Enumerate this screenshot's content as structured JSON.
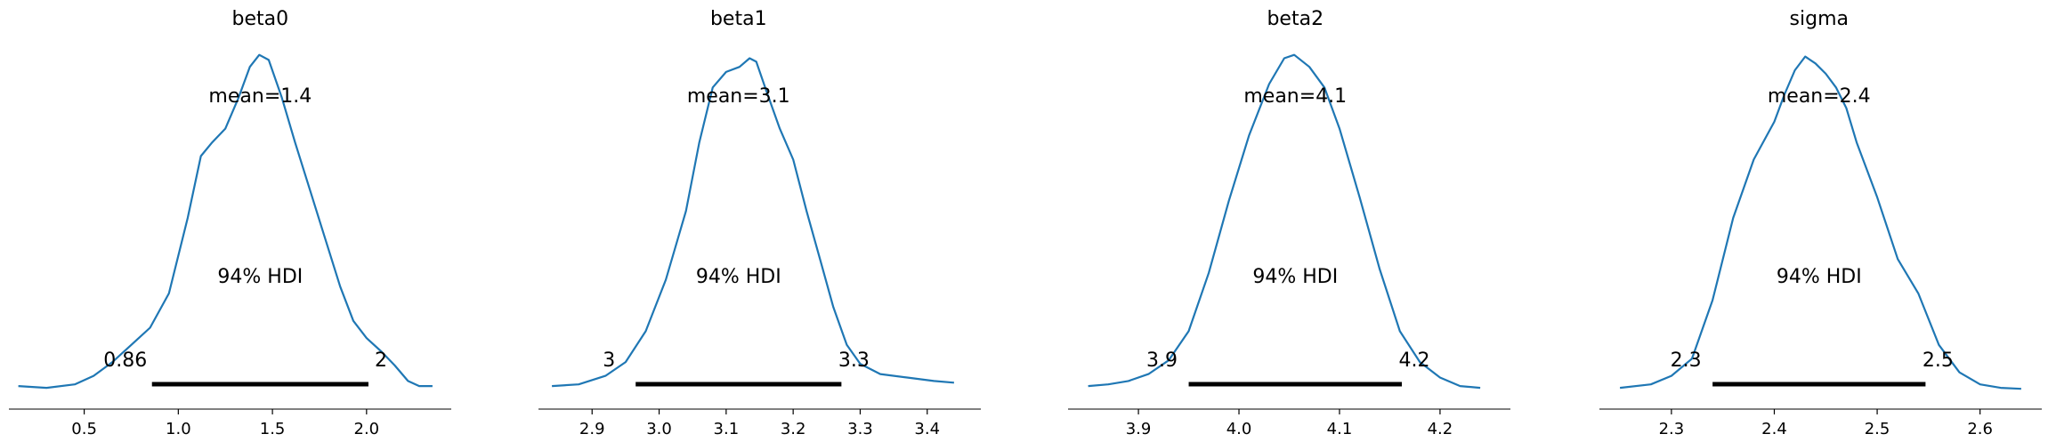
{
  "chart_data": [
    {
      "type": "line",
      "title": "beta0",
      "xlim": [
        0.1,
        2.45
      ],
      "xticks": [
        0.5,
        1.0,
        1.5,
        2.0
      ],
      "xtick_labels": [
        "0.5",
        "1.0",
        "1.5",
        "2.0"
      ],
      "mean_label": "mean=1.4",
      "hdi_label": "94% HDI",
      "hdi": [
        0.86,
        2.01
      ],
      "hdi_labels": [
        "0.86",
        "2"
      ],
      "density_points": [
        [
          0.15,
          0.01
        ],
        [
          0.3,
          0.005
        ],
        [
          0.45,
          0.015
        ],
        [
          0.55,
          0.04
        ],
        [
          0.65,
          0.08
        ],
        [
          0.75,
          0.13
        ],
        [
          0.85,
          0.18
        ],
        [
          0.95,
          0.28
        ],
        [
          1.05,
          0.5
        ],
        [
          1.12,
          0.68
        ],
        [
          1.18,
          0.72
        ],
        [
          1.25,
          0.76
        ],
        [
          1.32,
          0.85
        ],
        [
          1.38,
          0.94
        ],
        [
          1.43,
          0.975
        ],
        [
          1.48,
          0.96
        ],
        [
          1.55,
          0.85
        ],
        [
          1.62,
          0.72
        ],
        [
          1.7,
          0.58
        ],
        [
          1.78,
          0.44
        ],
        [
          1.86,
          0.3
        ],
        [
          1.93,
          0.2
        ],
        [
          2.0,
          0.15
        ],
        [
          2.08,
          0.11
        ],
        [
          2.15,
          0.07
        ],
        [
          2.22,
          0.025
        ],
        [
          2.28,
          0.01
        ],
        [
          2.35,
          0.01
        ]
      ]
    },
    {
      "type": "line",
      "title": "beta1",
      "xlim": [
        2.82,
        3.48
      ],
      "xticks": [
        2.9,
        3.0,
        3.1,
        3.2,
        3.3,
        3.4
      ],
      "xtick_labels": [
        "2.9",
        "3.0",
        "3.1",
        "3.2",
        "3.3",
        "3.4"
      ],
      "mean_label": "mean=3.1",
      "hdi_label": "94% HDI",
      "hdi": [
        2.965,
        3.272
      ],
      "hdi_labels": [
        "3",
        "3.3"
      ],
      "density_points": [
        [
          2.84,
          0.01
        ],
        [
          2.88,
          0.015
        ],
        [
          2.92,
          0.04
        ],
        [
          2.95,
          0.08
        ],
        [
          2.98,
          0.17
        ],
        [
          3.01,
          0.32
        ],
        [
          3.04,
          0.52
        ],
        [
          3.06,
          0.72
        ],
        [
          3.08,
          0.88
        ],
        [
          3.1,
          0.925
        ],
        [
          3.12,
          0.94
        ],
        [
          3.135,
          0.965
        ],
        [
          3.145,
          0.955
        ],
        [
          3.16,
          0.87
        ],
        [
          3.18,
          0.76
        ],
        [
          3.2,
          0.67
        ],
        [
          3.22,
          0.52
        ],
        [
          3.24,
          0.38
        ],
        [
          3.26,
          0.24
        ],
        [
          3.28,
          0.13
        ],
        [
          3.3,
          0.075
        ],
        [
          3.33,
          0.045
        ],
        [
          3.37,
          0.035
        ],
        [
          3.41,
          0.025
        ],
        [
          3.44,
          0.02
        ]
      ]
    },
    {
      "type": "line",
      "title": "beta2",
      "xlim": [
        3.83,
        4.27
      ],
      "xticks": [
        3.9,
        4.0,
        4.1,
        4.2
      ],
      "xtick_labels": [
        "3.9",
        "4.0",
        "4.1",
        "4.2"
      ],
      "mean_label": "mean=4.1",
      "hdi_label": "94% HDI",
      "hdi": [
        3.95,
        4.162
      ],
      "hdi_labels": [
        "3.9",
        "4.2"
      ],
      "density_points": [
        [
          3.85,
          0.01
        ],
        [
          3.87,
          0.015
        ],
        [
          3.89,
          0.025
        ],
        [
          3.91,
          0.045
        ],
        [
          3.93,
          0.085
        ],
        [
          3.95,
          0.17
        ],
        [
          3.97,
          0.34
        ],
        [
          3.99,
          0.55
        ],
        [
          4.01,
          0.74
        ],
        [
          4.03,
          0.89
        ],
        [
          4.045,
          0.965
        ],
        [
          4.055,
          0.975
        ],
        [
          4.07,
          0.94
        ],
        [
          4.085,
          0.88
        ],
        [
          4.1,
          0.76
        ],
        [
          4.12,
          0.56
        ],
        [
          4.14,
          0.35
        ],
        [
          4.16,
          0.17
        ],
        [
          4.18,
          0.08
        ],
        [
          4.2,
          0.035
        ],
        [
          4.22,
          0.01
        ],
        [
          4.24,
          0.005
        ]
      ]
    },
    {
      "type": "line",
      "title": "sigma",
      "xlim": [
        2.23,
        2.66
      ],
      "xticks": [
        2.3,
        2.4,
        2.5,
        2.6
      ],
      "xtick_labels": [
        "2.3",
        "2.4",
        "2.5",
        "2.6"
      ],
      "mean_label": "mean=2.4",
      "hdi_label": "94% HDI",
      "hdi": [
        2.34,
        2.547
      ],
      "hdi_labels": [
        "2.3",
        "2.5"
      ],
      "density_points": [
        [
          2.25,
          0.005
        ],
        [
          2.28,
          0.015
        ],
        [
          2.3,
          0.04
        ],
        [
          2.32,
          0.09
        ],
        [
          2.34,
          0.26
        ],
        [
          2.36,
          0.5
        ],
        [
          2.38,
          0.67
        ],
        [
          2.4,
          0.78
        ],
        [
          2.41,
          0.86
        ],
        [
          2.42,
          0.93
        ],
        [
          2.43,
          0.97
        ],
        [
          2.44,
          0.95
        ],
        [
          2.45,
          0.92
        ],
        [
          2.46,
          0.88
        ],
        [
          2.47,
          0.82
        ],
        [
          2.48,
          0.72
        ],
        [
          2.5,
          0.56
        ],
        [
          2.52,
          0.38
        ],
        [
          2.54,
          0.28
        ],
        [
          2.56,
          0.13
        ],
        [
          2.58,
          0.05
        ],
        [
          2.6,
          0.015
        ],
        [
          2.62,
          0.005
        ],
        [
          2.64,
          0.002
        ]
      ]
    }
  ],
  "colors": {
    "kde": "#1f77b4",
    "hdi": "#000000"
  }
}
